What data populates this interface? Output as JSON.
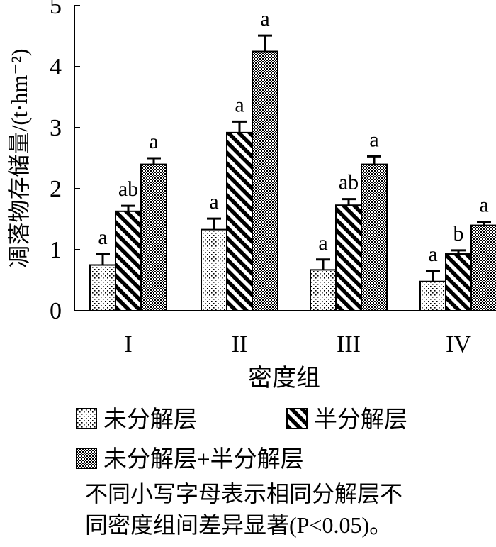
{
  "chart_data": {
    "type": "bar",
    "title": "",
    "xlabel": "密度组",
    "ylabel": "凋落物存储量/(t·hm⁻²)",
    "ylim": [
      0,
      5
    ],
    "yticks": [
      "0",
      "1",
      "2",
      "3",
      "4",
      "5"
    ],
    "categories": [
      "I",
      "II",
      "III",
      "IV"
    ],
    "series": [
      {
        "name": "未分解层",
        "values": [
          0.75,
          1.33,
          0.67,
          0.48
        ],
        "errors": [
          0.18,
          0.18,
          0.17,
          0.17
        ],
        "labels": [
          "a",
          "a",
          "a",
          "a"
        ],
        "pattern": "dots"
      },
      {
        "name": "半分解层",
        "values": [
          1.63,
          2.92,
          1.73,
          0.93
        ],
        "errors": [
          0.09,
          0.18,
          0.1,
          0.06
        ],
        "labels": [
          "ab",
          "a",
          "ab",
          "b"
        ],
        "pattern": "diagonal"
      },
      {
        "name": "未分解层+半分解层",
        "values": [
          2.4,
          4.25,
          2.4,
          1.4
        ],
        "errors": [
          0.1,
          0.26,
          0.13,
          0.06
        ],
        "labels": [
          "a",
          "a",
          "a",
          "a"
        ],
        "pattern": "checker"
      }
    ],
    "grid": false,
    "legend": "bottom",
    "note": [
      "不同小写字母表示相同分解层不",
      "同密度组间差异显著(P<0.05)。"
    ]
  }
}
